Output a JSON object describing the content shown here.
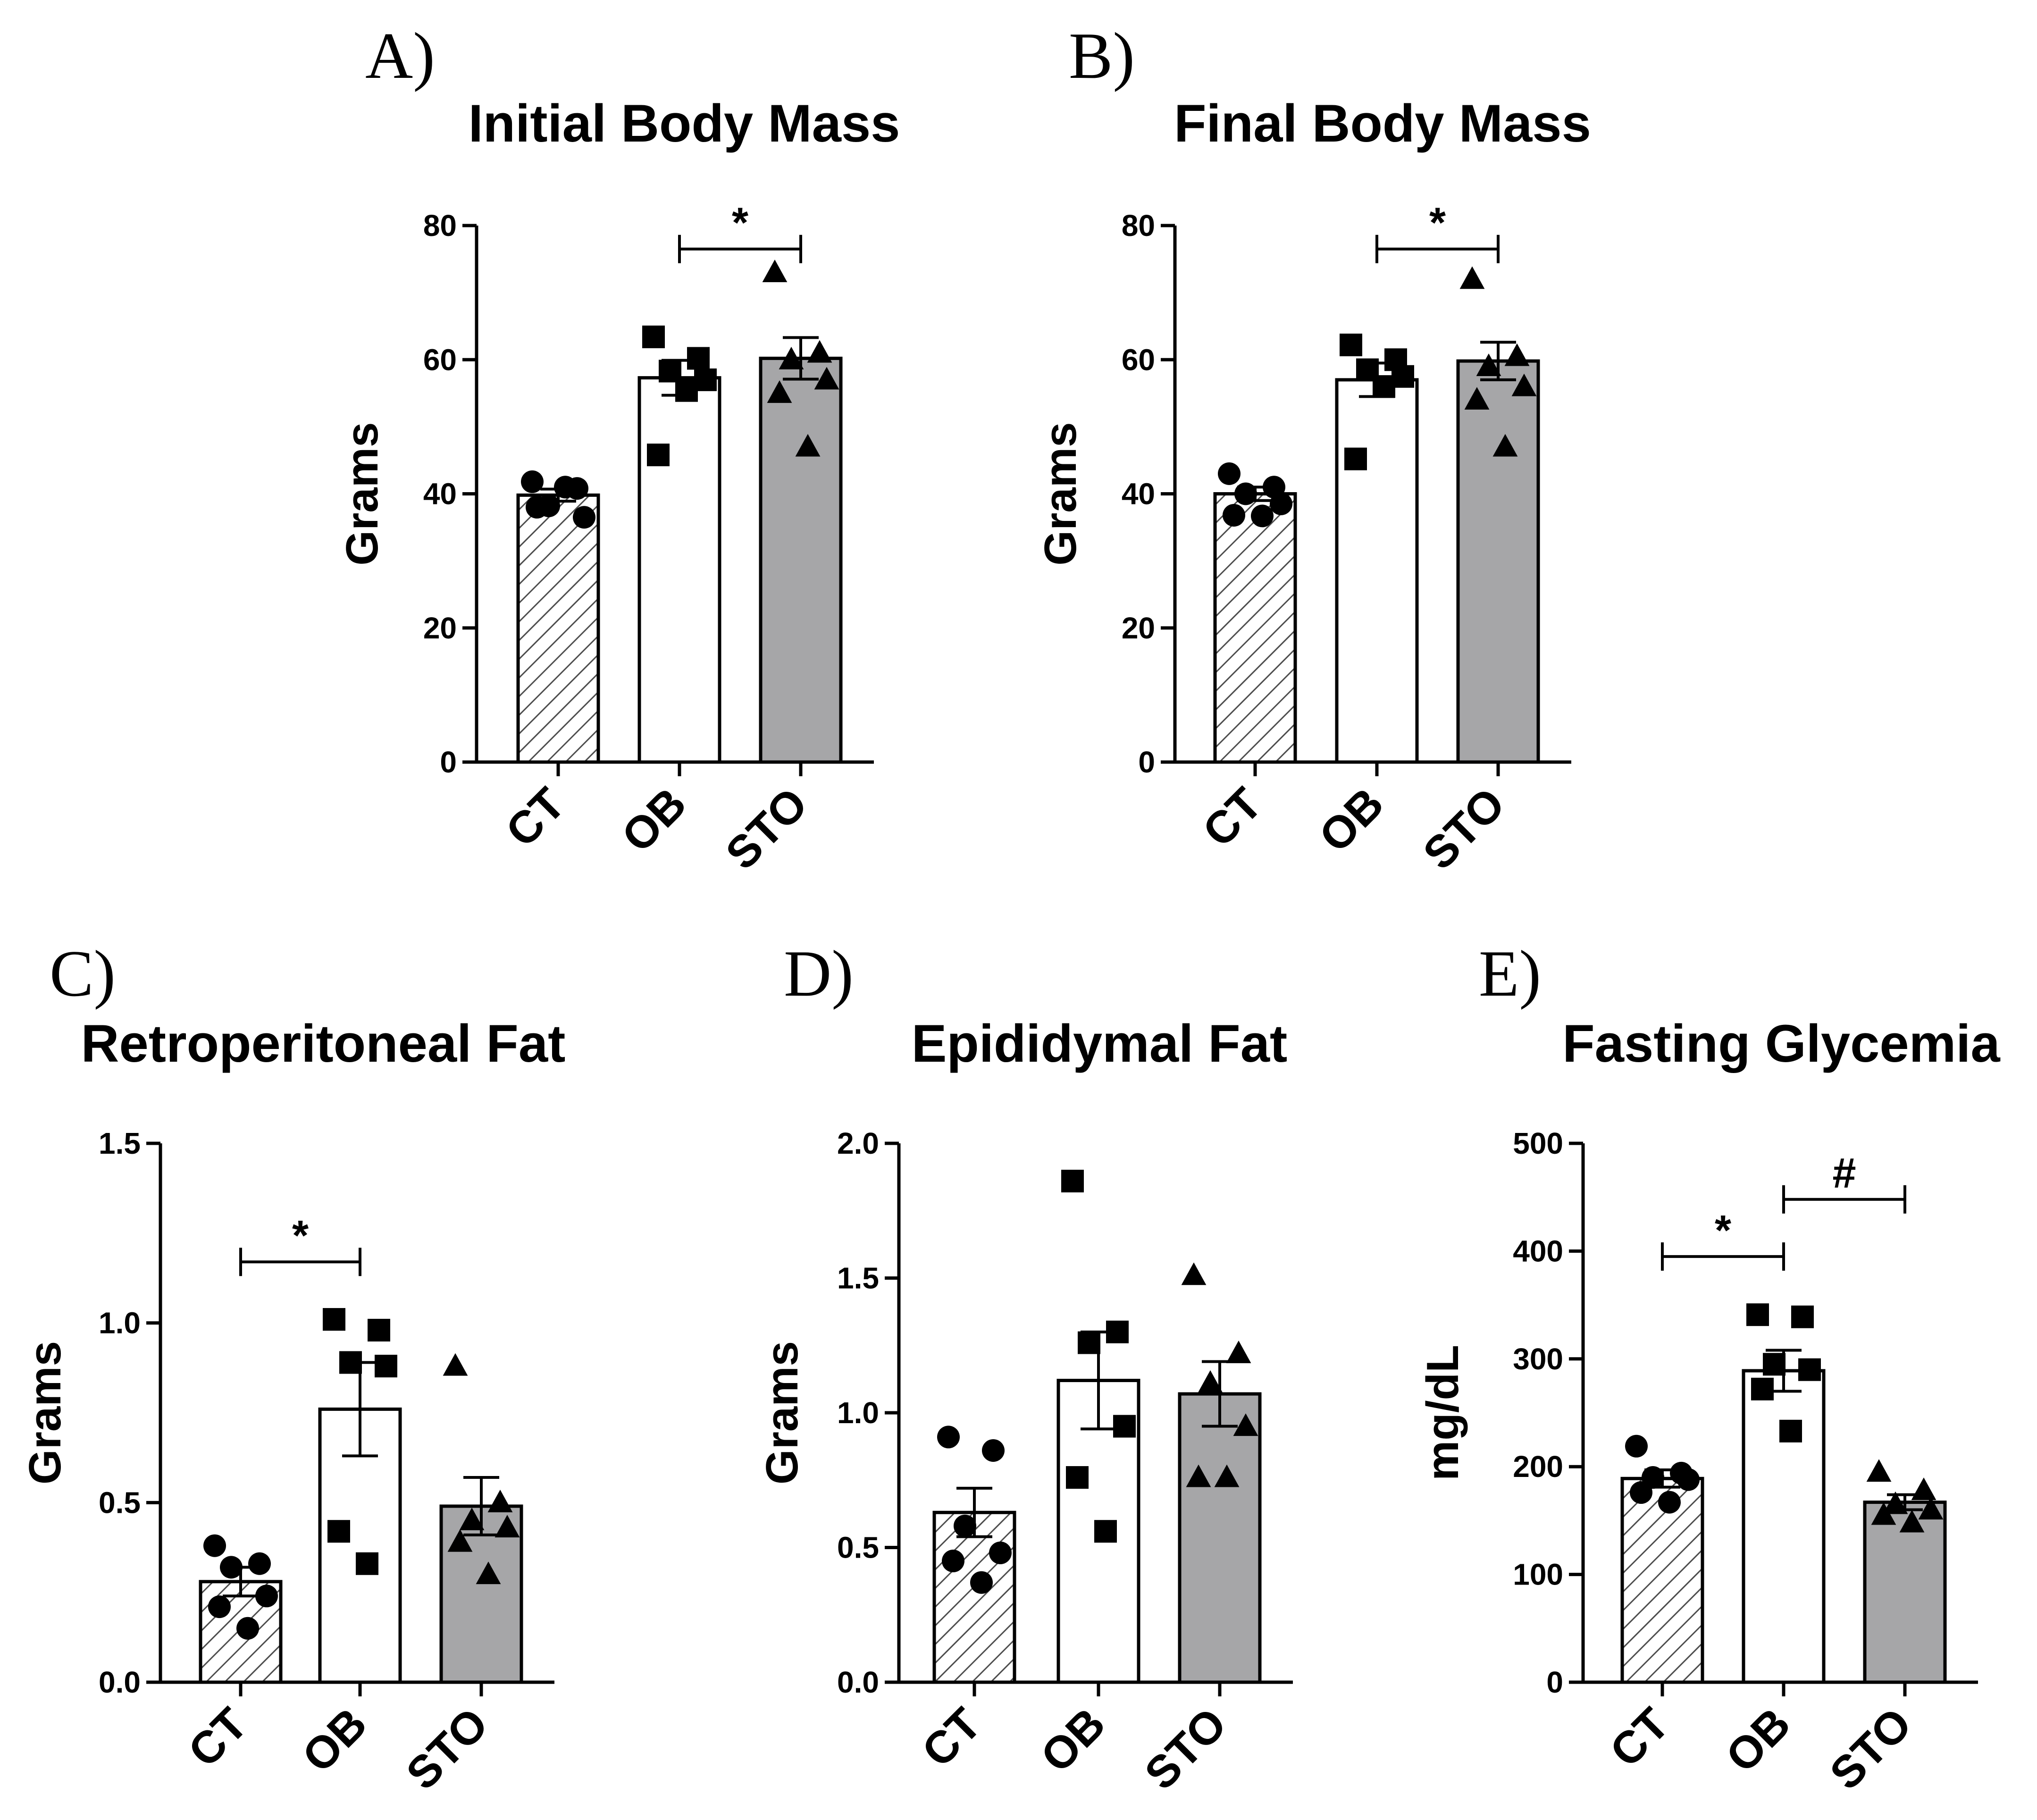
{
  "chart_data": [
    {
      "type": "bar",
      "panel": "A)",
      "title": "Initial Body Mass",
      "ylabel": "Grams",
      "categories": [
        "CT",
        "OB",
        "STO"
      ],
      "ylim": [
        0,
        80
      ],
      "yticks": [
        "0",
        "20",
        "40",
        "60",
        "80"
      ],
      "fills": [
        "hatch",
        "#ffffff",
        "#a6a6a8"
      ],
      "markers": [
        "circle",
        "square",
        "triangle"
      ],
      "series": [
        {
          "name": "CT",
          "mean": 39.8,
          "sem": 0.9,
          "points": [
            41.8,
            40.8,
            38.2,
            36.5,
            38.0,
            41.0
          ]
        },
        {
          "name": "OB",
          "mean": 57.3,
          "sem": 2.6,
          "points": [
            63.4,
            60.2,
            58.3,
            57.0,
            45.8,
            55.4
          ]
        },
        {
          "name": "STO",
          "mean": 60.2,
          "sem": 3.1,
          "points": [
            73.0,
            61.0,
            60.0,
            57.0,
            55.0,
            47.0
          ]
        }
      ],
      "significance": [
        {
          "from": 1,
          "to": 2,
          "y": 76.5,
          "label": "*"
        }
      ]
    },
    {
      "type": "bar",
      "panel": "B)",
      "title": "Final Body Mass",
      "ylabel": "Grams",
      "categories": [
        "CT",
        "OB",
        "STO"
      ],
      "ylim": [
        0,
        80
      ],
      "yticks": [
        "0",
        "20",
        "40",
        "60",
        "80"
      ],
      "fills": [
        "hatch",
        "#ffffff",
        "#a6a6a8"
      ],
      "markers": [
        "circle",
        "square",
        "triangle"
      ],
      "series": [
        {
          "name": "CT",
          "mean": 40.0,
          "sem": 1.0,
          "points": [
            43.0,
            41.0,
            40.0,
            38.5,
            36.8,
            36.7
          ]
        },
        {
          "name": "OB",
          "mean": 57.0,
          "sem": 2.5,
          "points": [
            62.2,
            60.0,
            58.5,
            57.5,
            45.2,
            56.0
          ]
        },
        {
          "name": "STO",
          "mean": 59.8,
          "sem": 2.8,
          "points": [
            72.0,
            60.5,
            59.0,
            56.0,
            54.0,
            47.0
          ]
        }
      ],
      "significance": [
        {
          "from": 1,
          "to": 2,
          "y": 76.5,
          "label": "*"
        }
      ]
    },
    {
      "type": "bar",
      "panel": "C)",
      "title": "Retroperitoneal Fat",
      "ylabel": "Grams",
      "categories": [
        "CT",
        "OB",
        "STO"
      ],
      "ylim": [
        0,
        1.5
      ],
      "yticks": [
        "0.0",
        "0.5",
        "1.0",
        "1.5"
      ],
      "fills": [
        "hatch",
        "#ffffff",
        "#a6a6a8"
      ],
      "markers": [
        "circle",
        "square",
        "triangle"
      ],
      "series": [
        {
          "name": "CT",
          "mean": 0.28,
          "sem": 0.04,
          "points": [
            0.38,
            0.33,
            0.32,
            0.24,
            0.21,
            0.15
          ]
        },
        {
          "name": "OB",
          "mean": 0.76,
          "sem": 0.13,
          "points": [
            1.01,
            0.98,
            0.89,
            0.88,
            0.42,
            0.33
          ]
        },
        {
          "name": "STO",
          "mean": 0.49,
          "sem": 0.08,
          "points": [
            0.88,
            0.5,
            0.45,
            0.43,
            0.39,
            0.3
          ]
        }
      ],
      "significance": [
        {
          "from": 0,
          "to": 1,
          "y": 1.17,
          "label": "*"
        }
      ]
    },
    {
      "type": "bar",
      "panel": "D)",
      "title": "Epididymal Fat",
      "ylabel": "Grams",
      "categories": [
        "CT",
        "OB",
        "STO"
      ],
      "ylim": [
        0,
        2.0
      ],
      "yticks": [
        "0.0",
        "0.5",
        "1.0",
        "1.5",
        "2.0"
      ],
      "fills": [
        "hatch",
        "#ffffff",
        "#a6a6a8"
      ],
      "markers": [
        "circle",
        "square",
        "triangle"
      ],
      "series": [
        {
          "name": "CT",
          "mean": 0.63,
          "sem": 0.09,
          "points": [
            0.91,
            0.86,
            0.58,
            0.48,
            0.45,
            0.37
          ]
        },
        {
          "name": "OB",
          "mean": 1.12,
          "sem": 0.18,
          "points": [
            1.86,
            1.3,
            1.26,
            0.95,
            0.76,
            0.56
          ]
        },
        {
          "name": "STO",
          "mean": 1.07,
          "sem": 0.12,
          "points": [
            1.51,
            1.22,
            1.11,
            0.95,
            0.76,
            0.76
          ]
        }
      ],
      "significance": []
    },
    {
      "type": "bar",
      "panel": "E)",
      "title": "Fasting Glycemia",
      "ylabel": "mg/dL",
      "categories": [
        "CT",
        "OB",
        "STO"
      ],
      "ylim": [
        0,
        500
      ],
      "yticks": [
        "0",
        "100",
        "200",
        "300",
        "400",
        "500"
      ],
      "fills": [
        "hatch",
        "#ffffff",
        "#a6a6a8"
      ],
      "markers": [
        "circle",
        "square",
        "triangle"
      ],
      "series": [
        {
          "name": "CT",
          "mean": 189,
          "sem": 8,
          "points": [
            219,
            194,
            190,
            188,
            176,
            167
          ]
        },
        {
          "name": "OB",
          "mean": 289,
          "sem": 19,
          "points": [
            341,
            339,
            295,
            290,
            272,
            233
          ]
        },
        {
          "name": "STO",
          "mean": 167,
          "sem": 7,
          "points": [
            195,
            178,
            165,
            160,
            155,
            148
          ]
        }
      ],
      "significance": [
        {
          "from": 0,
          "to": 1,
          "y": 395,
          "label": "*"
        },
        {
          "from": 1,
          "to": 2,
          "y": 448,
          "label": "#"
        }
      ]
    }
  ]
}
